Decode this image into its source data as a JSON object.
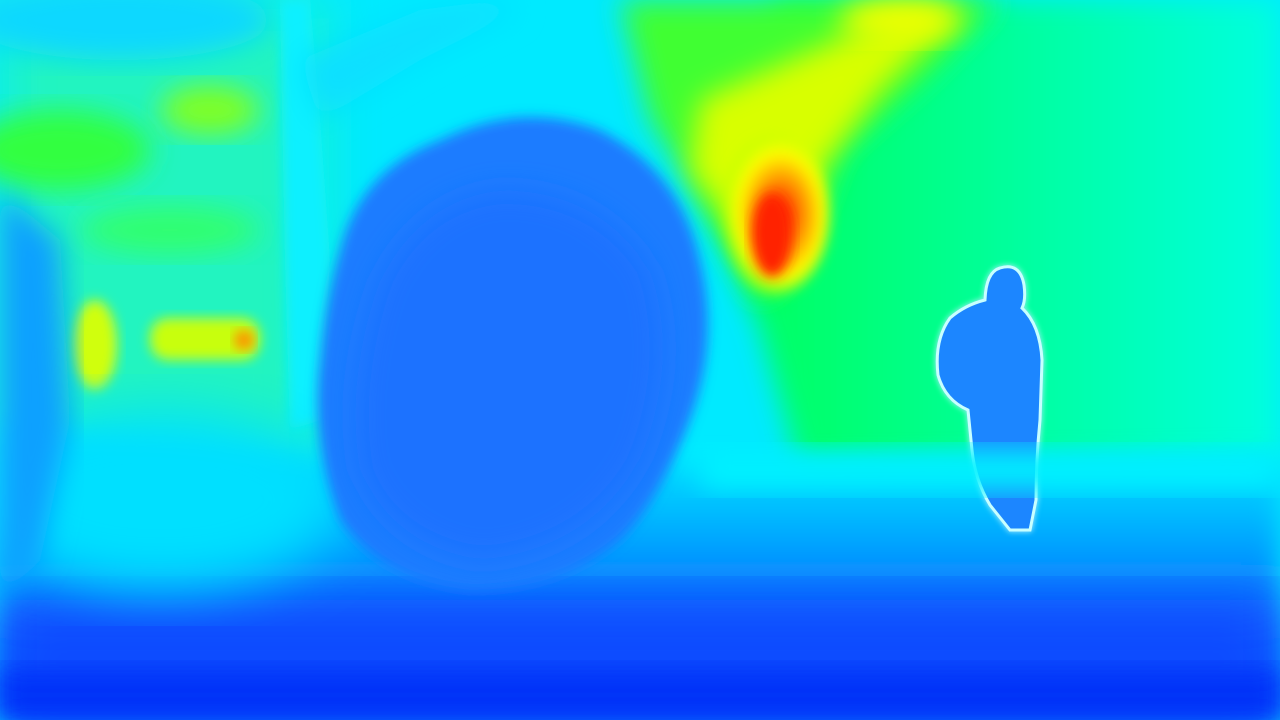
{
  "image": {
    "kind": "depth map",
    "colormap": "jet",
    "colors": {
      "near": "#0040ff",
      "mid_near": "#1e7fff",
      "mid": "#00f0ff",
      "mid_far": "#00ff66",
      "far": "#ffff00",
      "farthest": "#ff2000"
    },
    "regions": [
      "tree-trunk-left",
      "foliage-left",
      "bush-center",
      "sky-gap-top-center",
      "background-field-right",
      "standing-person-right",
      "ground-foreground"
    ]
  }
}
